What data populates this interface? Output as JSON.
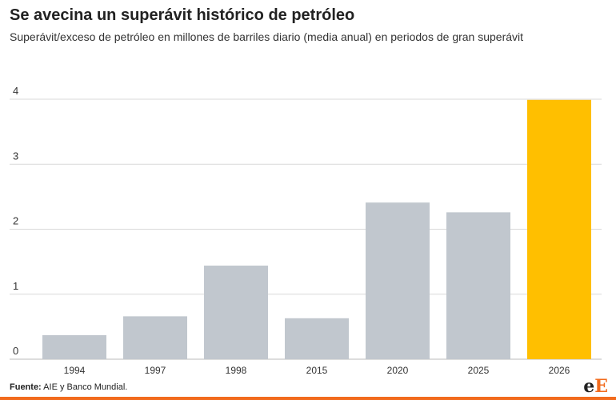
{
  "title": "Se avecina un superávit histórico de petróleo",
  "subtitle": "Superávit/exceso de petróleo en millones de barriles diario (media anual) en periodos de gran superávit",
  "source_label": "Fuente:",
  "source_text": " AIE y Banco Mundial.",
  "logo": {
    "part1": "e",
    "part2": "E"
  },
  "colors": {
    "default": "#c1c7ce",
    "highlight": "#ffbf00",
    "grid": "#d9d9d9",
    "brand": "#f26b1d"
  },
  "chart_data": {
    "type": "bar",
    "title": "Se avecina un superávit histórico de petróleo",
    "xlabel": "",
    "ylabel": "",
    "categories": [
      "1994",
      "1997",
      "1998",
      "2015",
      "2020",
      "2025",
      "2026"
    ],
    "values": [
      0.37,
      0.66,
      1.44,
      0.63,
      2.41,
      2.26,
      3.99
    ],
    "highlight": [
      "2026"
    ],
    "ylim": [
      0,
      4
    ],
    "yticks": [
      0,
      1,
      2,
      3,
      4
    ],
    "grid": true
  }
}
